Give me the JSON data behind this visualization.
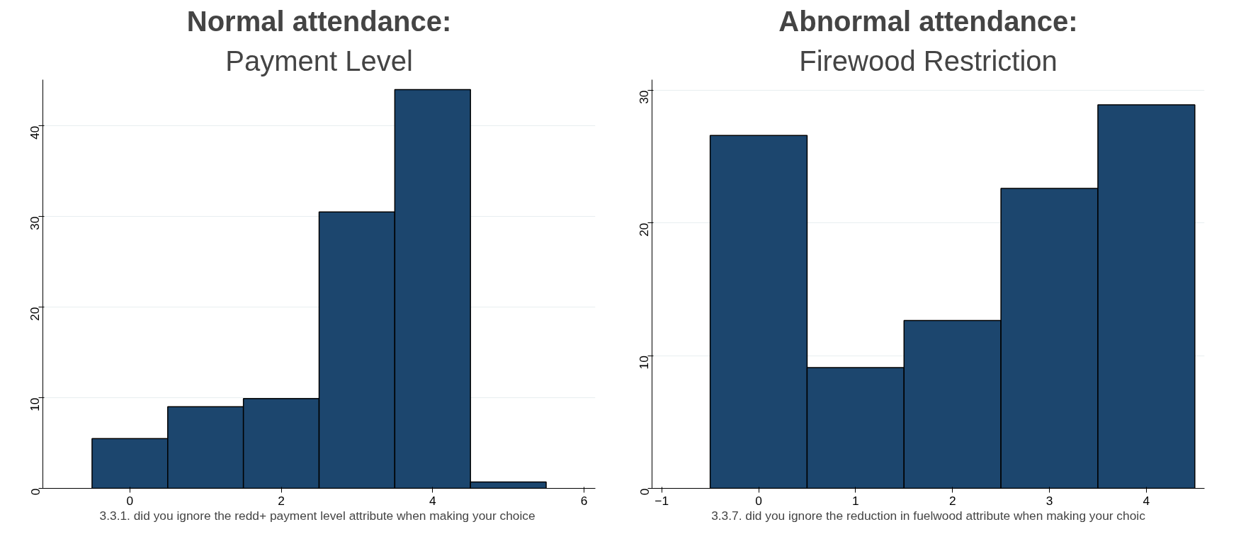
{
  "chart_data": [
    {
      "type": "histogram",
      "title": "Normal attendance:",
      "subtitle": "Payment Level",
      "xlabel": "3.3.1.  did you ignore the redd+ payment level attribute when making your choice",
      "bins": [
        -0.5,
        0.5,
        1.5,
        2.5,
        3.5,
        4.5,
        5.5
      ],
      "values": [
        5.5,
        9.0,
        9.9,
        30.5,
        44.0,
        0.7
      ],
      "color": "#1c466e",
      "xlim": [
        -1.15,
        6.15
      ],
      "xticks": [
        0,
        2,
        4,
        6
      ],
      "ylim": [
        0,
        45.1
      ],
      "yticks": [
        0,
        10,
        20,
        30,
        40
      ],
      "grid": "y"
    },
    {
      "type": "histogram",
      "title": "Abnormal attendance:",
      "subtitle": "Firewood Restriction",
      "xlabel": "3.3.7. did you ignore the reduction in fuelwood attribute when making your choic",
      "bins": [
        -0.5,
        0.5,
        1.5,
        2.5,
        3.5,
        4.5
      ],
      "values": [
        26.6,
        9.1,
        12.65,
        22.6,
        28.9
      ],
      "color": "#1c466e",
      "xlim": [
        -1.1,
        4.6
      ],
      "xticks": [
        -1,
        0,
        1,
        2,
        3,
        4
      ],
      "ylim": [
        0,
        30.8
      ],
      "yticks": [
        0,
        10,
        20,
        30
      ],
      "grid": "y"
    }
  ]
}
